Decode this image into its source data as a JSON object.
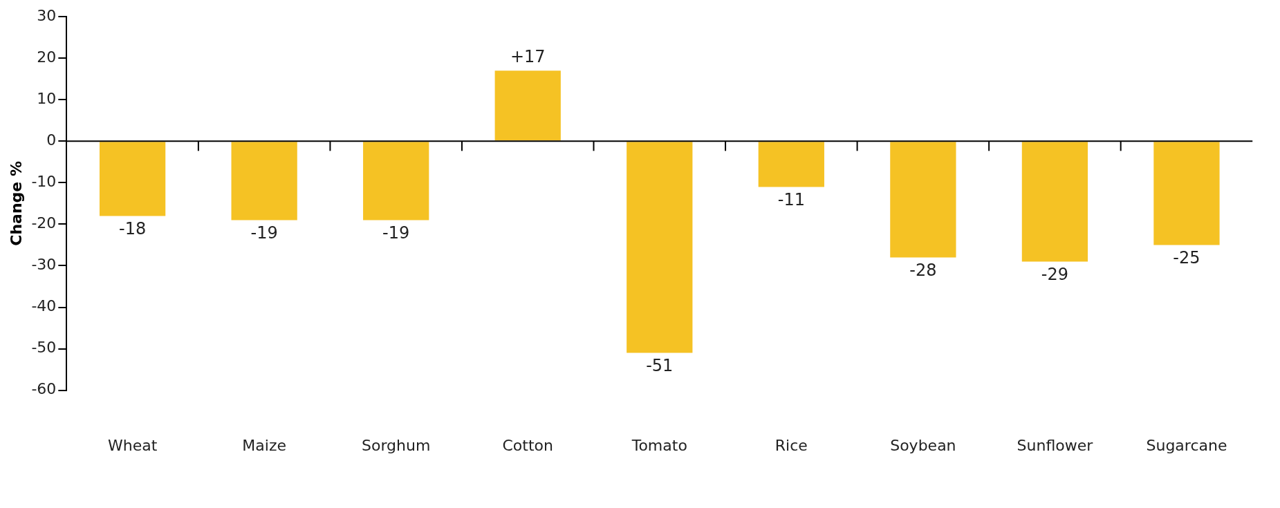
{
  "chart_data": {
    "type": "bar",
    "ylabel": "Change %",
    "categories": [
      "Wheat",
      "Maize",
      "Sorghum",
      "Cotton",
      "Tomato",
      "Rice",
      "Soybean",
      "Sunflower",
      "Sugarcane"
    ],
    "values": [
      -18,
      -19,
      -19,
      17,
      -51,
      -11,
      -28,
      -29,
      -25
    ],
    "value_labels": [
      "-18",
      "-19",
      "-19",
      "+17",
      "-51",
      "-11",
      "-28",
      "-29",
      "-25"
    ],
    "color": "#f5c224",
    "ylim": [
      -60,
      30
    ],
    "yticks": [
      -60,
      -50,
      -40,
      -30,
      -20,
      -10,
      0,
      10,
      20,
      30
    ],
    "legend": false
  }
}
